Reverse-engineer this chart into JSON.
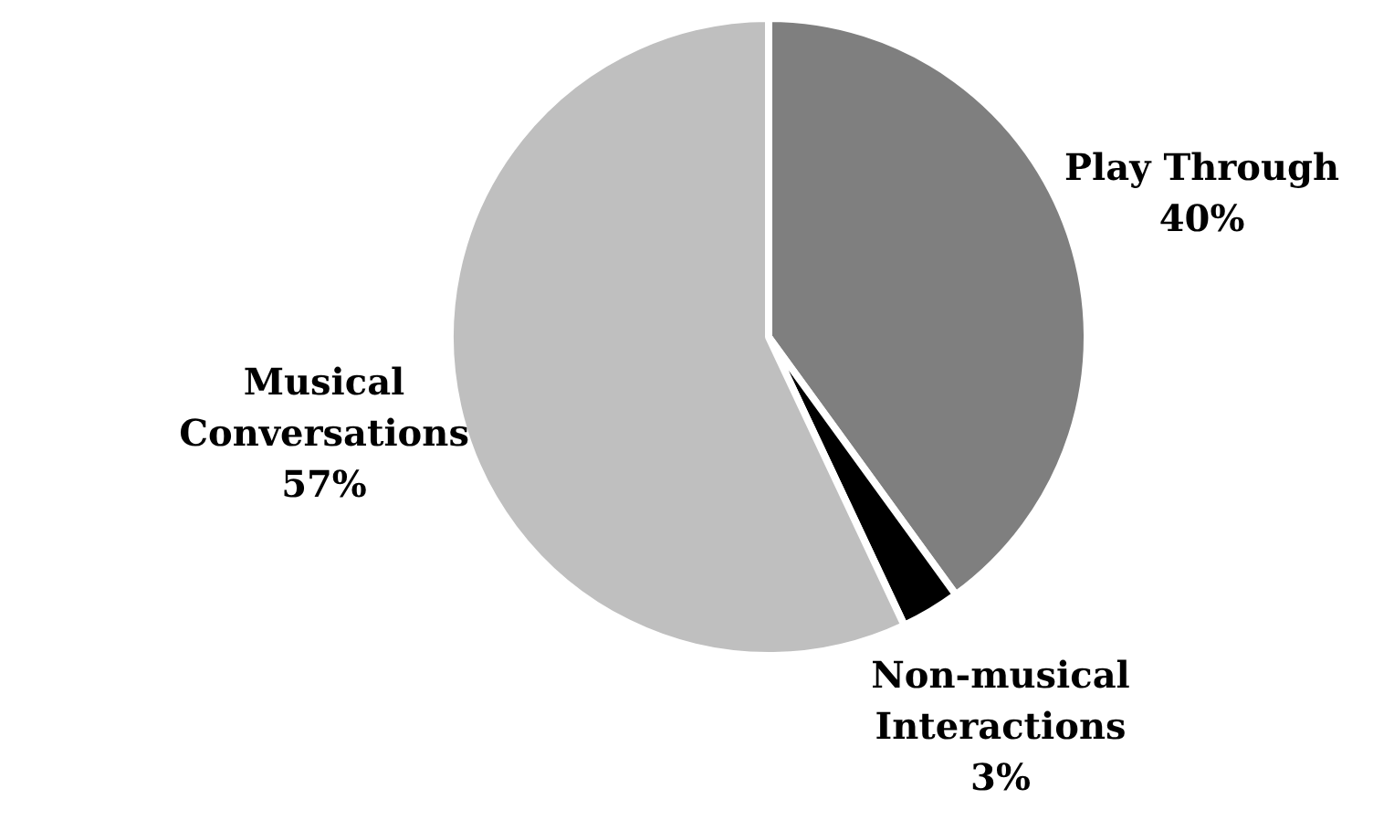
{
  "chart_data": {
    "type": "pie",
    "categories": [
      "Play Through",
      "Non-musical Interactions",
      "Musical Conversations"
    ],
    "values": [
      40,
      3,
      57
    ],
    "colors": [
      "#7f7f7f",
      "#000000",
      "#bfbfbf"
    ],
    "value_labels": [
      "40%",
      "3%",
      "57%"
    ],
    "legend": false
  }
}
